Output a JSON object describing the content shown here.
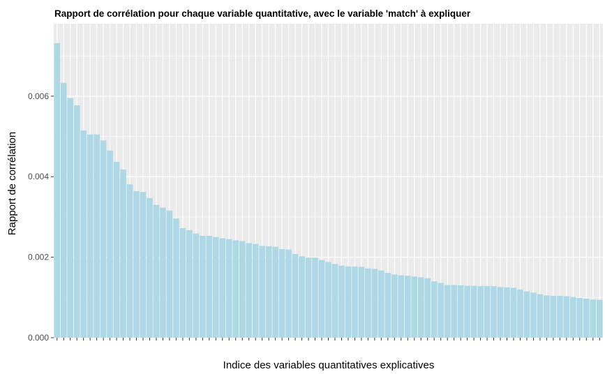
{
  "chart_data": {
    "type": "bar",
    "title": "Rapport de corrélation pour chaque variable quantitative, avec le variable 'match' à expliquer",
    "xlabel": "Indice des variables quantitatives explicatives",
    "ylabel": "Rapport de corrélation",
    "ylim": [
      0,
      0.0078
    ],
    "yticks": [
      0.0,
      0.002,
      0.004,
      0.006
    ],
    "ytick_labels": [
      "0.000",
      "0.002",
      "0.004",
      "0.006"
    ],
    "x_tick_labels_visible": false,
    "grid": true,
    "legend": "none",
    "bar_color": "#ADD8E6",
    "panel_background": "#EBEBEB",
    "grid_color": "#FFFFFF",
    "values": [
      0.00732,
      0.00633,
      0.00595,
      0.00577,
      0.00515,
      0.00505,
      0.00505,
      0.0049,
      0.00465,
      0.00437,
      0.00418,
      0.00381,
      0.00364,
      0.00362,
      0.00347,
      0.0033,
      0.00323,
      0.00316,
      0.00296,
      0.00272,
      0.00267,
      0.00259,
      0.00253,
      0.00253,
      0.0025,
      0.00247,
      0.00245,
      0.00242,
      0.0024,
      0.00235,
      0.00233,
      0.00228,
      0.00227,
      0.00226,
      0.0022,
      0.00219,
      0.00208,
      0.00202,
      0.00199,
      0.00199,
      0.00193,
      0.00188,
      0.00183,
      0.00179,
      0.00177,
      0.00177,
      0.00176,
      0.00172,
      0.00171,
      0.00167,
      0.00161,
      0.00157,
      0.00155,
      0.00154,
      0.00152,
      0.0015,
      0.00148,
      0.0014,
      0.00136,
      0.00131,
      0.00131,
      0.0013,
      0.00129,
      0.00129,
      0.00128,
      0.00128,
      0.00128,
      0.00126,
      0.00125,
      0.00124,
      0.0012,
      0.00115,
      0.00112,
      0.00108,
      0.00105,
      0.00104,
      0.00104,
      0.00103,
      0.00101,
      0.00099,
      0.00097,
      0.00095,
      0.00094
    ]
  }
}
